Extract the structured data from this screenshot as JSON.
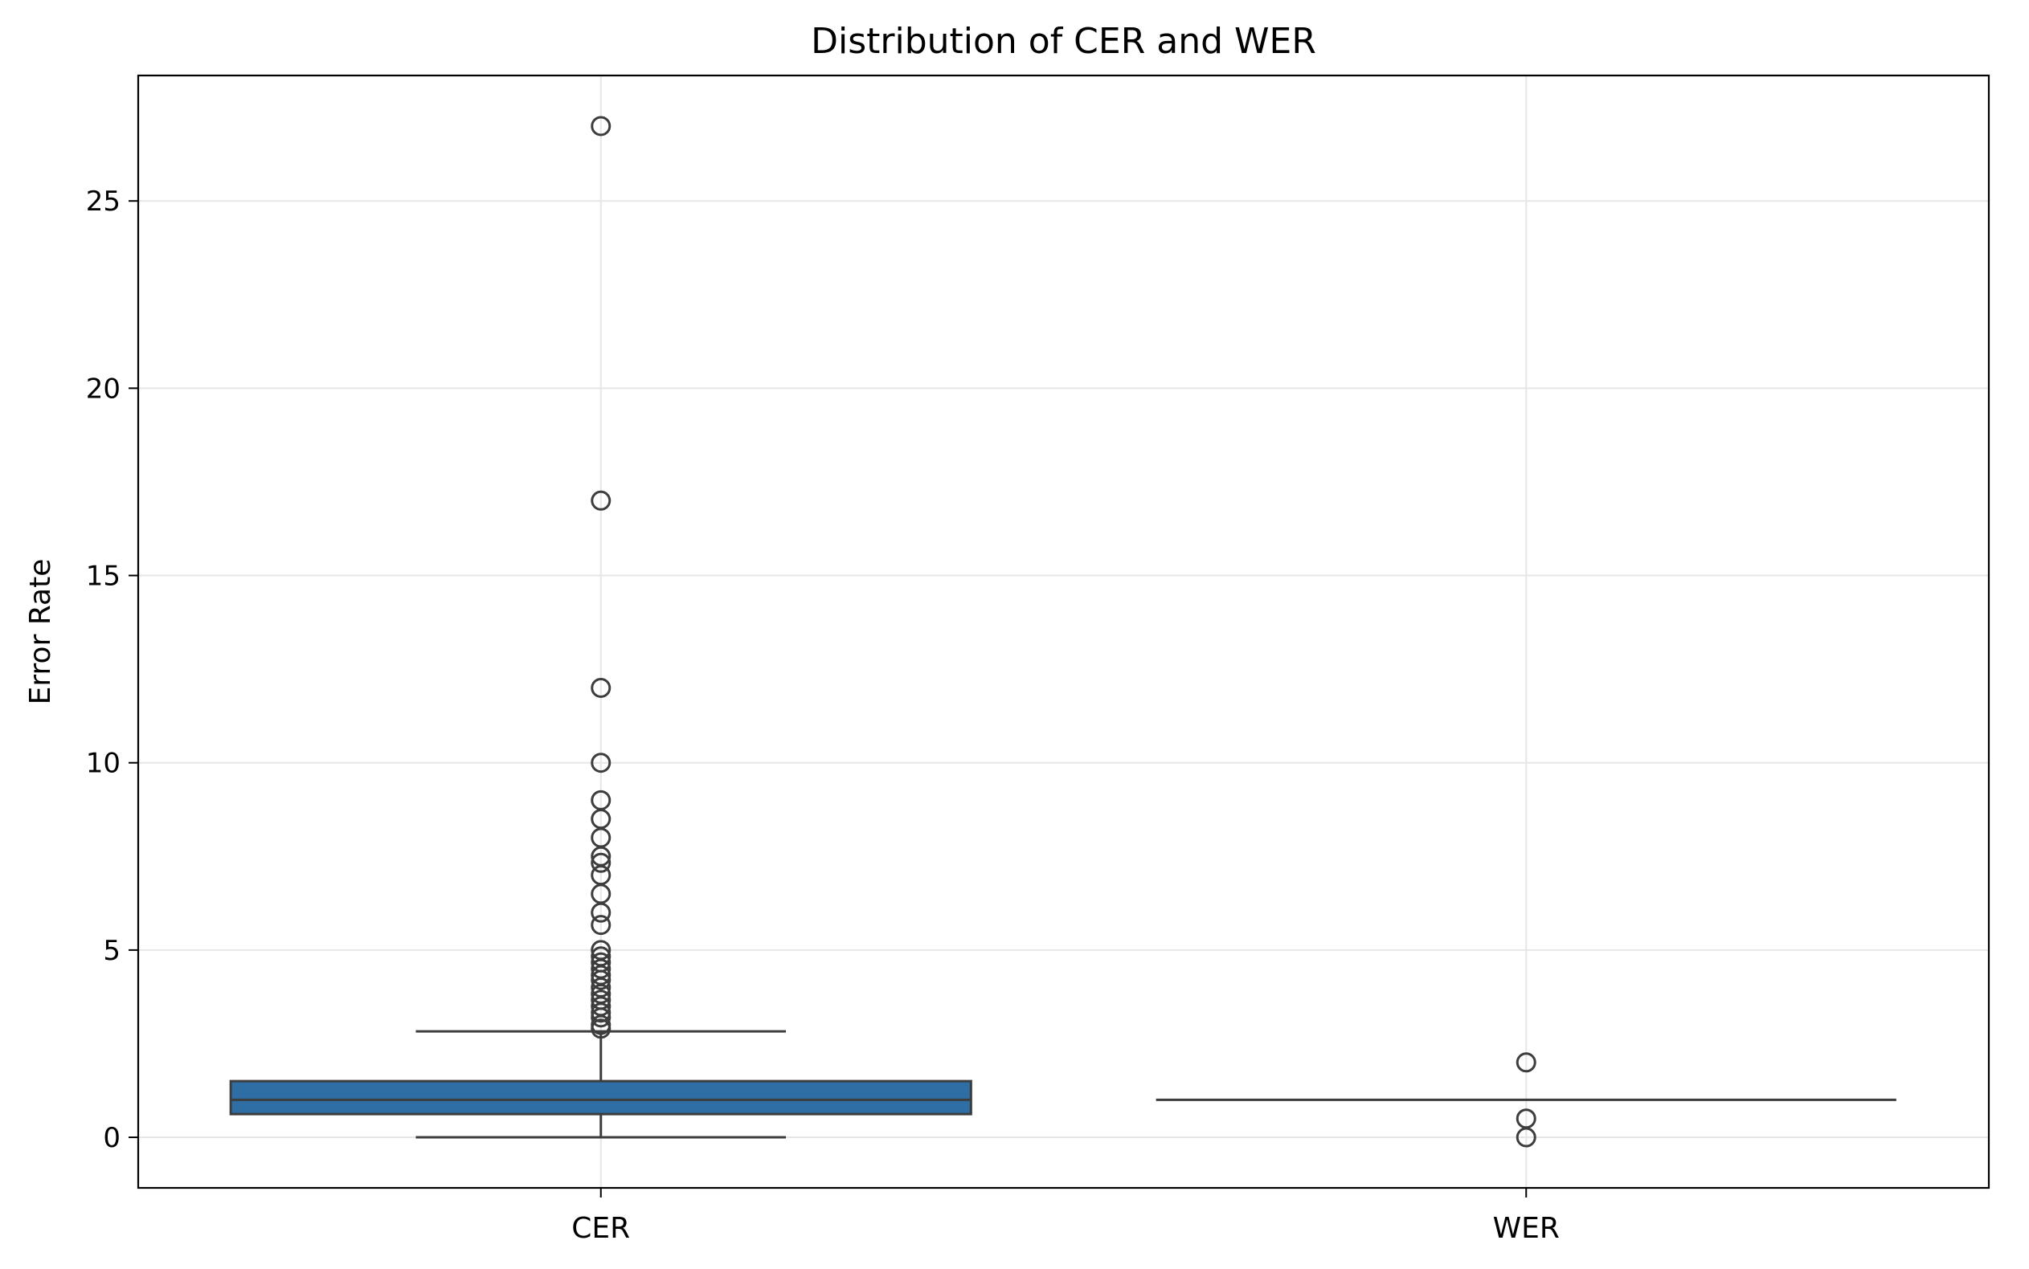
{
  "chart_data": {
    "type": "box",
    "title": "Distribution of CER and WER",
    "xlabel": "",
    "ylabel": "Error Rate",
    "ylim": [
      -1.35,
      28.35
    ],
    "yticks": [
      0,
      5,
      10,
      15,
      20,
      25
    ],
    "grid": true,
    "categories": [
      "CER",
      "WER"
    ],
    "boxes": [
      {
        "category": "CER",
        "whisker_low": 0,
        "q1": 0.62,
        "median": 1.0,
        "q3": 1.5,
        "whisker_high": 2.83,
        "fill": "#2e6ea4",
        "outliers": [
          27,
          17,
          12,
          10,
          9,
          8.5,
          8,
          7.5,
          7.33,
          7,
          6.5,
          6,
          5.67,
          5,
          4.83,
          4.67,
          4.5,
          4.33,
          4.2,
          4,
          3.83,
          3.67,
          3.5,
          3.33,
          3.2,
          3,
          2.9
        ]
      },
      {
        "category": "WER",
        "whisker_low": 1,
        "q1": 1,
        "median": 1,
        "q3": 1,
        "whisker_high": 1,
        "fill": "#2e6ea4",
        "outliers": [
          2,
          0.5,
          0
        ]
      }
    ],
    "colors": {
      "box_fill": "#2e6ea4",
      "line": "#3d3d3d",
      "grid": "#e6e6e6",
      "axes": "#000000"
    }
  }
}
